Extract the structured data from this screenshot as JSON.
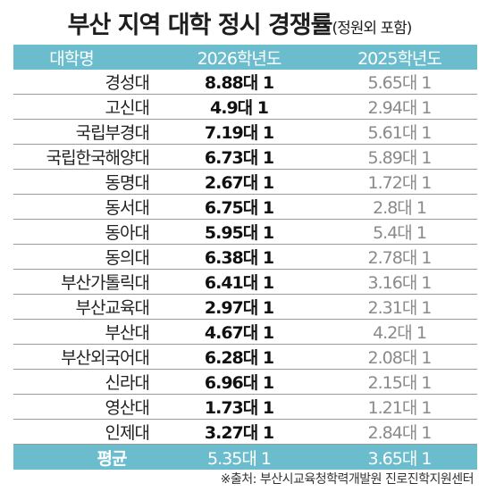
{
  "title": "부산 지역 대학 정시 경쟁률",
  "subtitle": "(정원외 포함)",
  "columns": [
    "대학명",
    "2026학년도",
    "2025학년도"
  ],
  "rows": [
    {
      "name": "경성대",
      "y2026": "8.88대 1",
      "y2025": "5.65대 1"
    },
    {
      "name": "고신대",
      "y2026": "4.9대 1",
      "y2025": "2.94대 1"
    },
    {
      "name": "국립부경대",
      "y2026": "7.19대 1",
      "y2025": "5.61대 1"
    },
    {
      "name": "국립한국해양대",
      "y2026": "6.73대 1",
      "y2025": "5.89대 1"
    },
    {
      "name": "동명대",
      "y2026": "2.67대 1",
      "y2025": "1.72대 1"
    },
    {
      "name": "동서대",
      "y2026": "6.75대 1",
      "y2025": "2.8대 1"
    },
    {
      "name": "동아대",
      "y2026": "5.95대 1",
      "y2025": "5.4대 1"
    },
    {
      "name": "동의대",
      "y2026": "6.38대 1",
      "y2025": "2.78대 1"
    },
    {
      "name": "부산가톨릭대",
      "y2026": "6.41대 1",
      "y2025": "3.16대 1"
    },
    {
      "name": "부산교육대",
      "y2026": "2.97대 1",
      "y2025": "2.31대 1"
    },
    {
      "name": "부산대",
      "y2026": "4.67대 1",
      "y2025": "4.2대 1"
    },
    {
      "name": "부산외국어대",
      "y2026": "6.28대 1",
      "y2025": "2.08대 1"
    },
    {
      "name": "신라대",
      "y2026": "6.96대 1",
      "y2025": "2.15대 1"
    },
    {
      "name": "영산대",
      "y2026": "1.73대 1",
      "y2025": "1.21대 1"
    },
    {
      "name": "인제대",
      "y2026": "3.27대 1",
      "y2025": "2.84대 1"
    }
  ],
  "footer": {
    "label": "평균",
    "y2026": "5.35대 1",
    "y2025": "3.65대 1"
  },
  "source": "※출처: 부산시교육청학력개발원 진로진학지원센터",
  "colors": {
    "header_bg": "#6bbccd",
    "prev_year_text": "#8a8a8a"
  }
}
